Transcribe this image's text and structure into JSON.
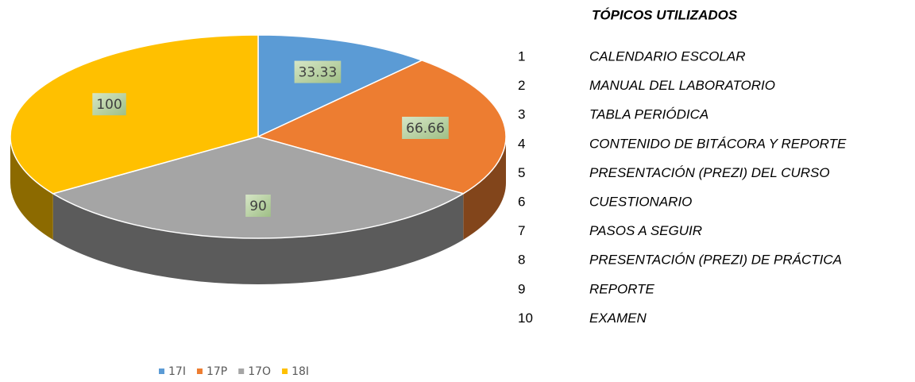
{
  "chart_data": {
    "type": "pie",
    "categories": [
      "17I",
      "17P",
      "17O",
      "18I"
    ],
    "values": [
      33.33,
      66.66,
      90,
      100
    ],
    "colors": [
      "#5b9bd5",
      "#ed7d31",
      "#a5a5a5",
      "#ffc000"
    ],
    "legend": "bottom"
  },
  "topics": {
    "title": "TÓPICOS UTILIZADOS",
    "items": [
      {
        "number": 1,
        "label": "CALENDARIO ESCOLAR"
      },
      {
        "number": 2,
        "label": "MANUAL DEL LABORATORIO"
      },
      {
        "number": 3,
        "label": "TABLA PERIÓDICA"
      },
      {
        "number": 4,
        "label": "CONTENIDO DE BITÁCORA Y REPORTE"
      },
      {
        "number": 5,
        "label": "PRESENTACIÓN (PREZI) DEL CURSO"
      },
      {
        "number": 6,
        "label": "CUESTIONARIO"
      },
      {
        "number": 7,
        "label": "PASOS A SEGUIR"
      },
      {
        "number": 8,
        "label": "PRESENTACIÓN (PREZI) DE PRÁCTICA"
      },
      {
        "number": 9,
        "label": "REPORTE"
      },
      {
        "number": 10,
        "label": "EXAMEN"
      }
    ]
  }
}
